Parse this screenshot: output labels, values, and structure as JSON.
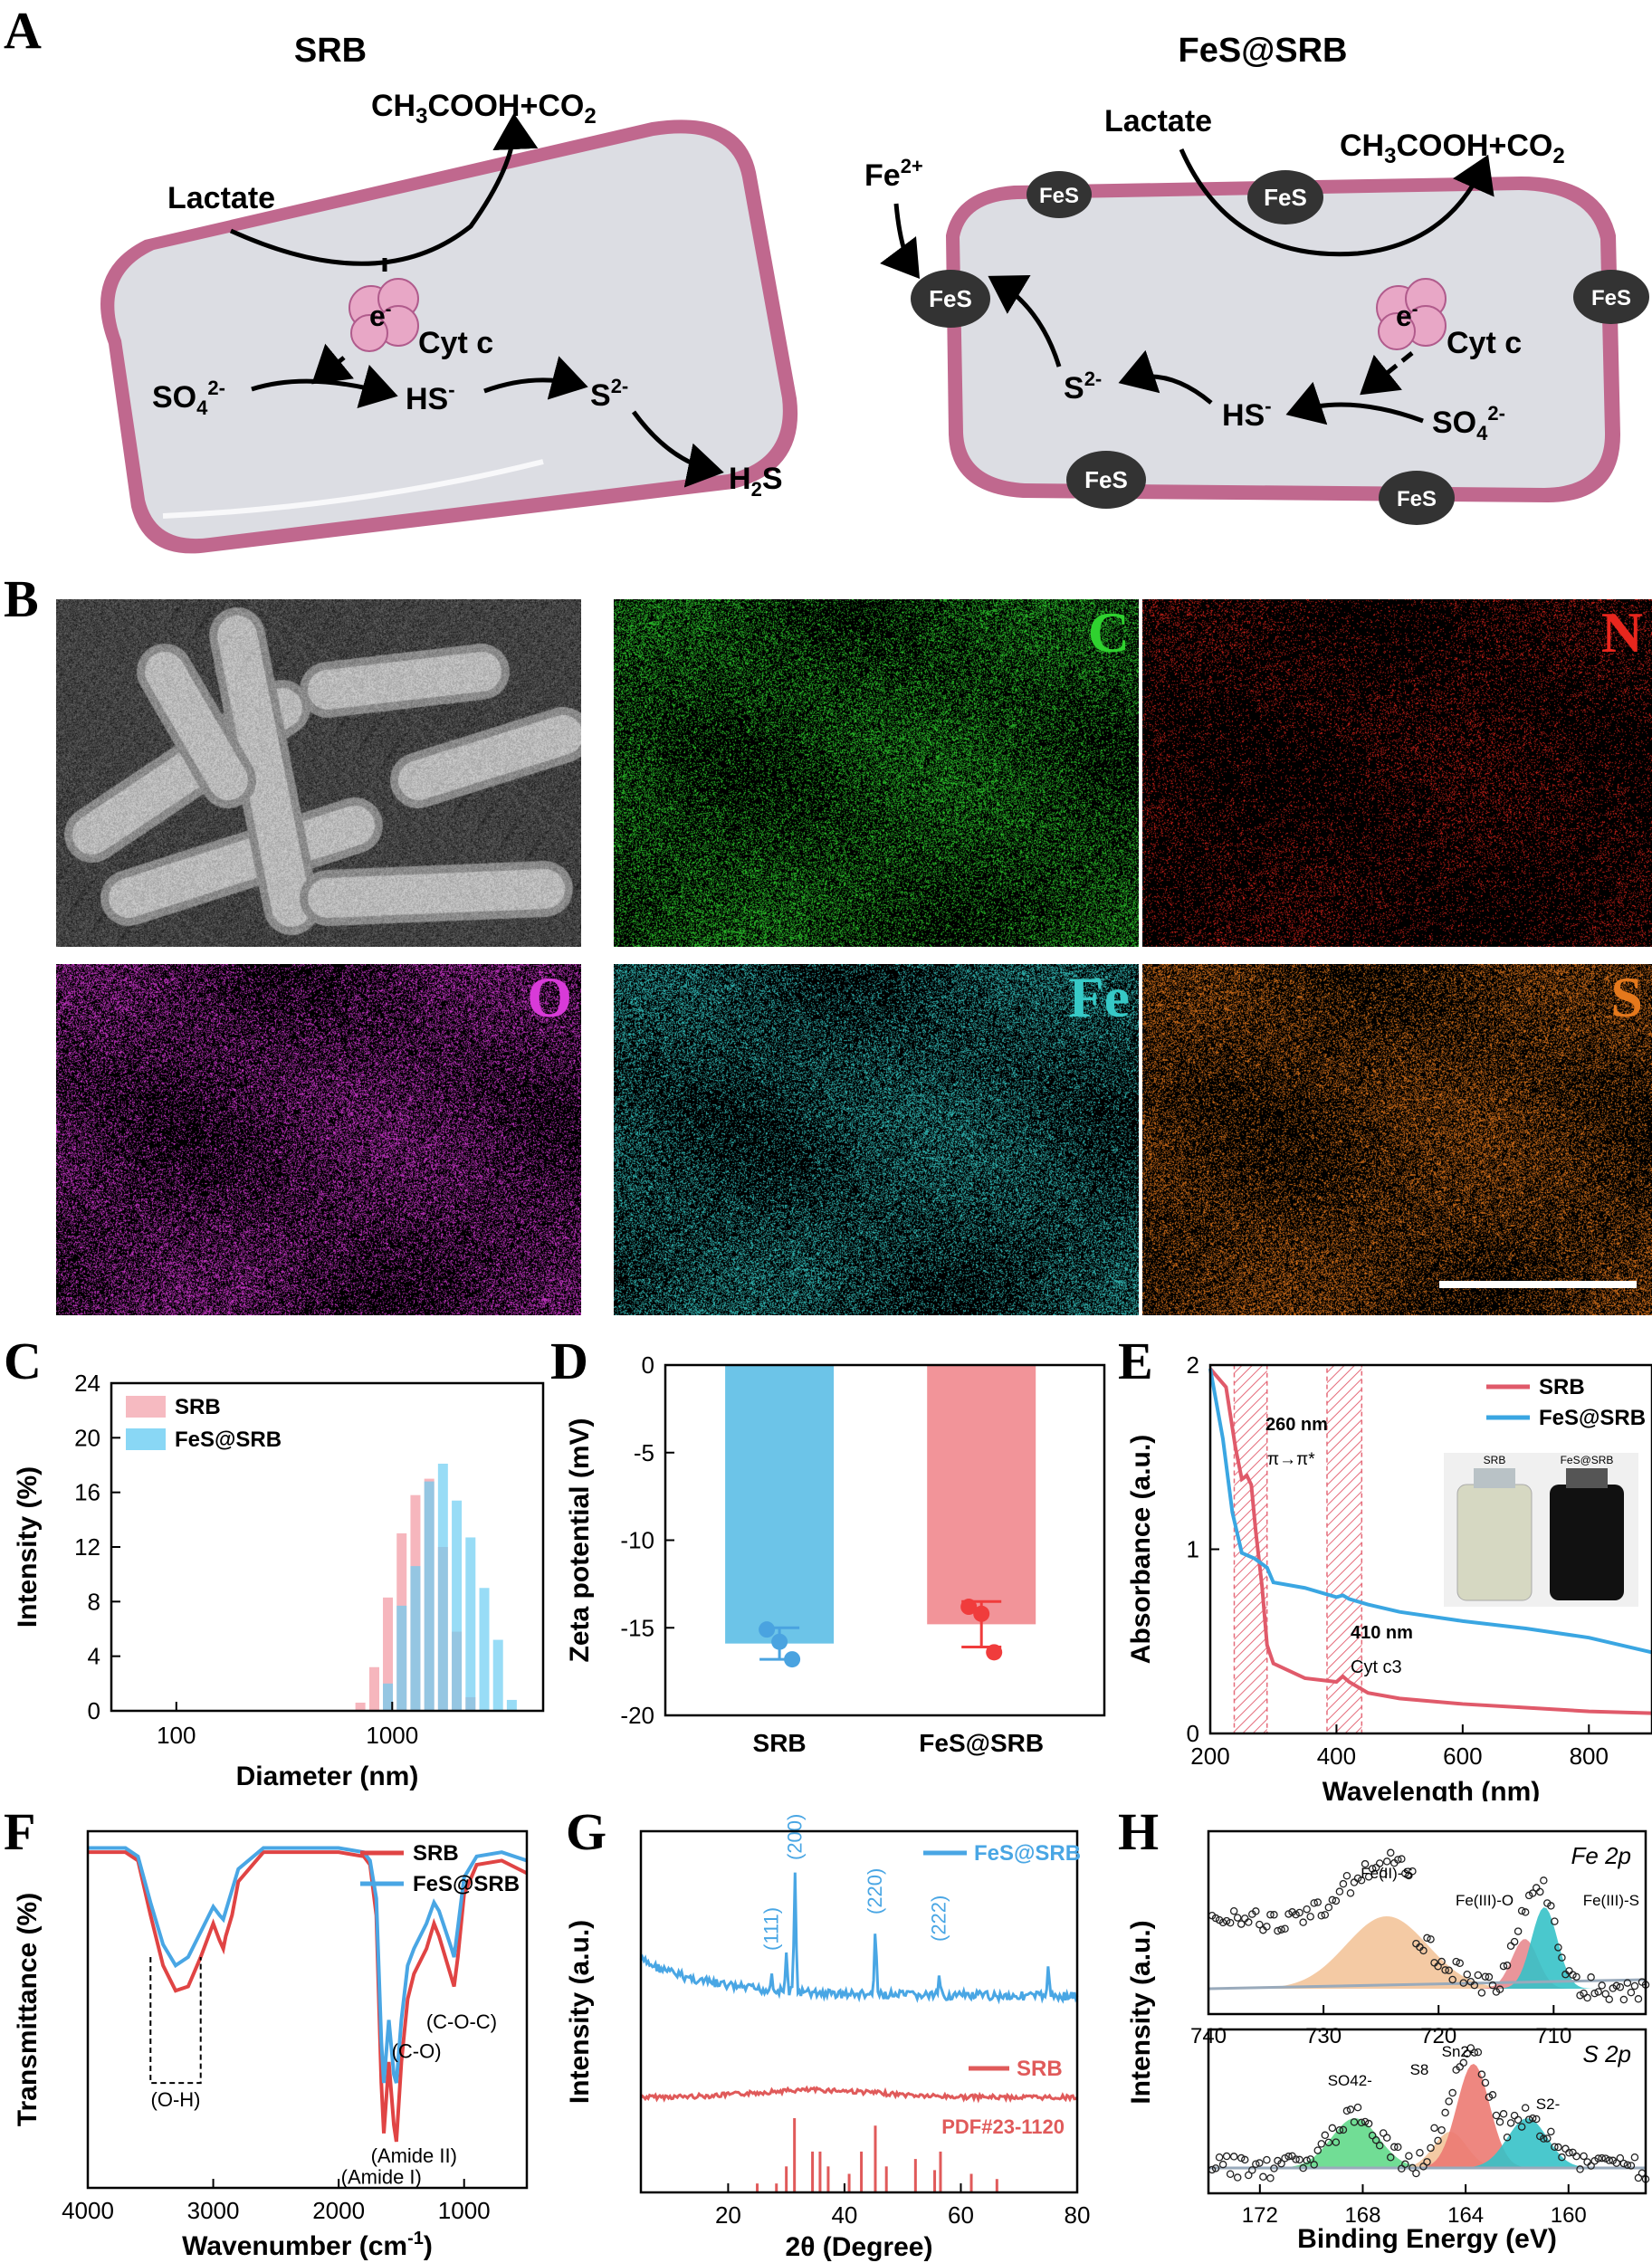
{
  "panel_letters": {
    "A": "A",
    "B": "B",
    "C": "C",
    "D": "D",
    "E": "E",
    "F": "F",
    "G": "G",
    "H": "H"
  },
  "panelA": {
    "left": {
      "title": "SRB",
      "products": "CH3COOH+CO2",
      "lactate": "Lactate",
      "electron": "e-",
      "cytc": "Cyt c",
      "sulfate": "SO42-",
      "hs": "HS-",
      "s2": "S2-",
      "h2s": "H2S"
    },
    "right": {
      "title": "FeS@SRB",
      "lactate": "Lactate",
      "products": "CH3COOH+CO2",
      "fe2": "Fe2+",
      "fes": "FeS",
      "electron": "e-",
      "cytc": "Cyt c",
      "s2": "S2-",
      "hs": "HS-",
      "sulfate": "SO42-"
    },
    "colors": {
      "membrane": "#c0688e",
      "cytoplasm": "#dcdde3",
      "cyt_c": "#e8a7c6",
      "fes": "#333333"
    }
  },
  "panelB": {
    "tiles": [
      {
        "name": "sem",
        "label": "",
        "color": "#888888"
      },
      {
        "name": "carbon",
        "label": "C",
        "color": "#2fd12f"
      },
      {
        "name": "nitrogen",
        "label": "N",
        "color": "#e8261d"
      },
      {
        "name": "oxygen",
        "label": "O",
        "color": "#d83ad8"
      },
      {
        "name": "iron",
        "label": "Fe",
        "color": "#36c9c6"
      },
      {
        "name": "sulfur",
        "label": "S",
        "color": "#e4781c"
      }
    ]
  },
  "chart_data": [
    {
      "panel": "C",
      "type": "bar",
      "xlabel": "Diameter (nm)",
      "ylabel": "Intensity (%)",
      "xscale": "log",
      "xlim": [
        50,
        5000
      ],
      "ylim": [
        0,
        24
      ],
      "xticks": [
        100,
        1000
      ],
      "yticks": [
        0,
        4,
        8,
        12,
        16,
        20,
        24
      ],
      "legend": "top-left",
      "series": [
        {
          "name": "SRB",
          "color": "#f4a9b1",
          "x": [
            712,
            826,
            955,
            1106,
            1281,
            1484,
            1718,
            1990,
            2305
          ],
          "values": [
            0.6,
            3.2,
            8.3,
            13.0,
            15.8,
            17.0,
            12.0,
            5.8,
            1.0
          ]
        },
        {
          "name": "FeS@SRB",
          "color": "#6ccdf2",
          "x": [
            955,
            1106,
            1281,
            1484,
            1718,
            1990,
            2305,
            2670,
            3092,
            3580
          ],
          "values": [
            2.0,
            7.7,
            10.6,
            16.8,
            18.1,
            15.4,
            12.7,
            9.0,
            5.2,
            0.8
          ]
        }
      ]
    },
    {
      "panel": "D",
      "type": "bar",
      "ylabel": "Zeta potential (mV)",
      "ylim": [
        -20,
        0
      ],
      "yticks": [
        0,
        -5,
        -10,
        -15,
        -20
      ],
      "categories": [
        "SRB",
        "FeS@SRB"
      ],
      "values": [
        -15.9,
        -14.8
      ],
      "errors": [
        0.9,
        1.3
      ],
      "points": [
        [
          -15.1,
          -15.8,
          -16.8
        ],
        [
          -13.8,
          -14.2,
          -16.4
        ]
      ],
      "colors": [
        "#6cc4e8",
        "#f29499"
      ],
      "point_colors": [
        "#4aa3e0",
        "#f03c3c"
      ]
    },
    {
      "panel": "E",
      "type": "line",
      "xlabel": "Wavelength (nm)",
      "ylabel": "Absorbance (a.u.)",
      "xlim": [
        200,
        900
      ],
      "ylim": [
        0,
        2
      ],
      "xticks": [
        200,
        400,
        600,
        800
      ],
      "yticks": [
        0,
        1,
        2
      ],
      "legend": "top-right",
      "annotations": [
        "260 nm",
        "π→π*",
        "410 nm",
        "Cyt c3"
      ],
      "inset_labels": [
        "SRB",
        "FeS@SRB"
      ],
      "series": [
        {
          "name": "SRB",
          "color": "#e05a6a",
          "x": [
            200,
            225,
            240,
            250,
            258,
            265,
            272,
            282,
            290,
            300,
            350,
            400,
            410,
            420,
            450,
            500,
            600,
            700,
            800,
            900
          ],
          "y": [
            1.98,
            1.88,
            1.55,
            1.38,
            1.4,
            1.35,
            1.1,
            0.8,
            0.48,
            0.38,
            0.3,
            0.28,
            0.31,
            0.28,
            0.22,
            0.19,
            0.16,
            0.14,
            0.12,
            0.11
          ]
        },
        {
          "name": "FeS@SRB",
          "color": "#3aa6e2",
          "x": [
            200,
            220,
            235,
            250,
            270,
            290,
            300,
            350,
            400,
            410,
            420,
            450,
            500,
            600,
            700,
            800,
            900
          ],
          "y": [
            1.98,
            1.6,
            1.2,
            0.98,
            0.95,
            0.9,
            0.82,
            0.79,
            0.74,
            0.75,
            0.73,
            0.7,
            0.66,
            0.61,
            0.57,
            0.52,
            0.44
          ]
        }
      ]
    },
    {
      "panel": "F",
      "type": "line",
      "xlabel": "Wavenumber (cm-1)",
      "ylabel": "Transmittance (%)",
      "xlim": [
        4000,
        500
      ],
      "xticks": [
        4000,
        3000,
        2000,
        1000
      ],
      "legend": "top-right",
      "annotations": [
        "(O-H)",
        "(C-O)",
        "(C-O-C)",
        "(Amide II)",
        "(Amide I)"
      ],
      "series": [
        {
          "name": "SRB",
          "color": "#e04444",
          "x": [
            4000,
            3700,
            3600,
            3500,
            3400,
            3300,
            3200,
            3100,
            3000,
            2950,
            2920,
            2900,
            2850,
            2800,
            2600,
            2000,
            1800,
            1750,
            1700,
            1660,
            1640,
            1600,
            1560,
            1540,
            1500,
            1450,
            1400,
            1300,
            1240,
            1200,
            1100,
            1080,
            1050,
            1000,
            900,
            700,
            500
          ],
          "y": [
            95,
            95,
            93,
            80,
            68,
            62,
            63,
            70,
            78,
            74,
            72,
            75,
            80,
            88,
            95,
            95,
            94,
            92,
            80,
            40,
            28,
            45,
            30,
            26,
            45,
            60,
            66,
            72,
            78,
            75,
            65,
            63,
            70,
            85,
            92,
            93,
            90
          ]
        },
        {
          "name": "FeS@SRB",
          "color": "#49a6e4",
          "x": [
            4000,
            3700,
            3600,
            3500,
            3400,
            3300,
            3200,
            3100,
            3000,
            2950,
            2920,
            2900,
            2850,
            2800,
            2600,
            2000,
            1800,
            1750,
            1700,
            1660,
            1640,
            1600,
            1560,
            1540,
            1500,
            1450,
            1400,
            1300,
            1240,
            1200,
            1100,
            1080,
            1050,
            1000,
            900,
            700,
            500
          ],
          "y": [
            96,
            96,
            94,
            83,
            73,
            68,
            70,
            76,
            82,
            80,
            79,
            81,
            86,
            91,
            96,
            96,
            95,
            93,
            84,
            50,
            40,
            55,
            42,
            40,
            55,
            68,
            72,
            78,
            83,
            81,
            72,
            70,
            77,
            89,
            94,
            95,
            93
          ]
        }
      ]
    },
    {
      "panel": "G",
      "type": "line",
      "xlabel": "2θ (Degree)",
      "ylabel": "Intensity (a.u.)",
      "xlim": [
        5,
        80
      ],
      "xticks": [
        20,
        40,
        60,
        80
      ],
      "legend": "top-right",
      "peak_labels": [
        {
          "label": "(111)",
          "x": 27.5
        },
        {
          "label": "(200)",
          "x": 31.5
        },
        {
          "label": "(220)",
          "x": 45.3
        },
        {
          "label": "(222)",
          "x": 56.3
        }
      ],
      "reference": {
        "name": "PDF#23-1120",
        "color": "#e05a5a",
        "x": [
          25.0,
          28.3,
          30.0,
          31.4,
          34.5,
          35.8,
          37.2,
          40.8,
          42.9,
          45.3,
          47.2,
          52.2,
          55.5,
          56.5,
          61.8,
          66.2
        ],
        "values": [
          0.12,
          0.12,
          0.35,
          1.0,
          0.55,
          0.55,
          0.35,
          0.25,
          0.55,
          0.9,
          0.35,
          0.45,
          0.3,
          0.55,
          0.25,
          0.18
        ]
      },
      "series": [
        {
          "name": "FeS@SRB",
          "color": "#49a6e4"
        },
        {
          "name": "SRB",
          "color": "#e05a5a"
        }
      ]
    },
    {
      "panel": "H",
      "type": "scatter",
      "xlabel": "Binding Energy (eV)",
      "ylabel": "Intensity (a.u.)",
      "subplots": [
        {
          "title": "Fe 2p",
          "xlim": [
            740,
            702
          ],
          "xticks": [
            740,
            730,
            720,
            710
          ],
          "components": [
            {
              "label": "Fe(II)-S",
              "center": 724.5,
              "color": "#f3c49a"
            },
            {
              "label": "Fe(III)-O",
              "center": 712.5,
              "color": "#e88a8f"
            },
            {
              "label": "Fe(III)-S",
              "center": 710.8,
              "color": "#36c2c8"
            }
          ]
        },
        {
          "title": "S 2p",
          "xlim": [
            174,
            157
          ],
          "xticks": [
            172,
            168,
            164,
            160
          ],
          "components": [
            {
              "label": "SO42-",
              "center": 168.3,
              "color": "#62d98a"
            },
            {
              "label": "S8",
              "center": 164.6,
              "color": "#f3c49a"
            },
            {
              "label": "Sn2-",
              "center": 163.7,
              "color": "#ec7a72"
            },
            {
              "label": "S2-",
              "center": 161.6,
              "color": "#36c2c8"
            }
          ]
        }
      ]
    }
  ]
}
